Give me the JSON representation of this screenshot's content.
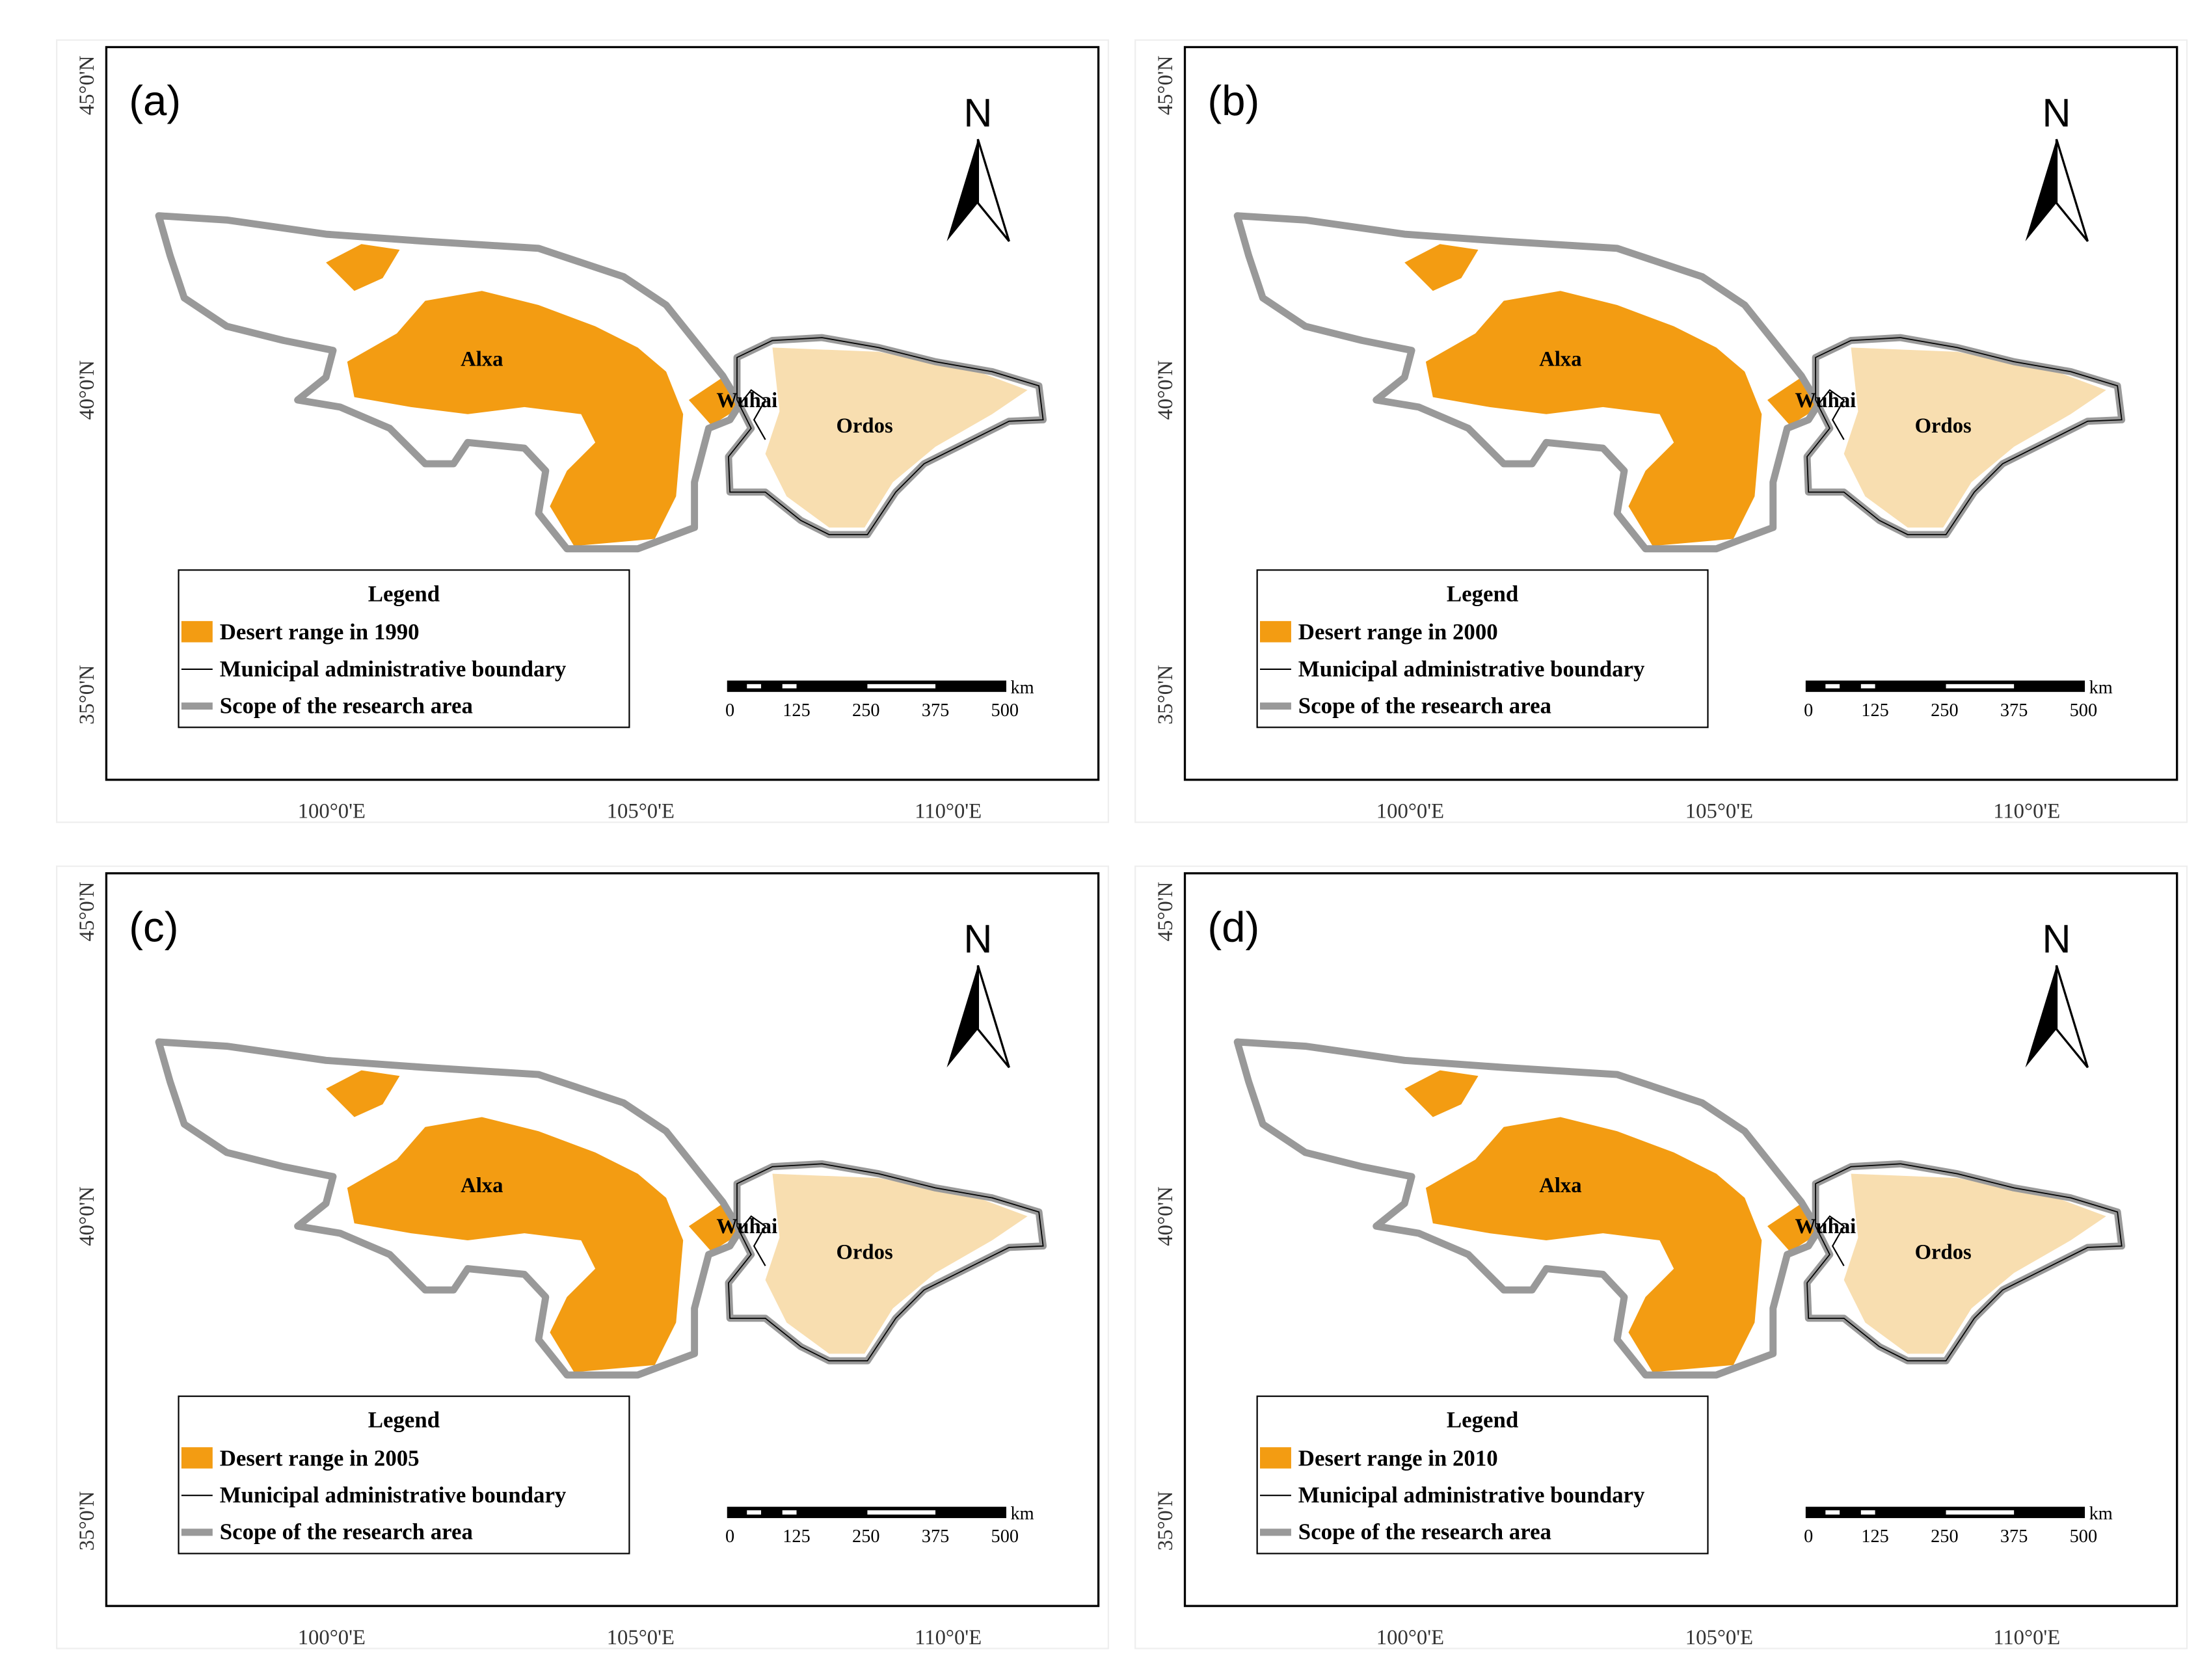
{
  "panels": [
    {
      "label": "(a)",
      "north": "N",
      "regions": [
        "Alxa",
        "Wuhai",
        "Ordos"
      ],
      "legend_title": "Legend",
      "legend_items": [
        "Desert range in 1990",
        "Municipal administrative boundary",
        "Scope of the research area"
      ],
      "scale_unit": "km",
      "scale_labels": [
        "0",
        "125",
        "250",
        "375",
        "500"
      ],
      "lat_labels": [
        "45°0'N",
        "40°0'N",
        "35°0'N"
      ],
      "lon_labels": [
        "100°0'E",
        "105°0'E",
        "110°0'E"
      ]
    },
    {
      "label": "(b)",
      "north": "N",
      "regions": [
        "Alxa",
        "Wuhai",
        "Ordos"
      ],
      "legend_title": "Legend",
      "legend_items": [
        "Desert range in 2000",
        "Municipal administrative boundary",
        "Scope of the research area"
      ],
      "scale_unit": "km",
      "scale_labels": [
        "0",
        "125",
        "250",
        "375",
        "500"
      ],
      "lat_labels": [
        "45°0'N",
        "40°0'N",
        "35°0'N"
      ],
      "lon_labels": [
        "100°0'E",
        "105°0'E",
        "110°0'E"
      ]
    },
    {
      "label": "(c)",
      "north": "N",
      "regions": [
        "Alxa",
        "Wuhai",
        "Ordos"
      ],
      "legend_title": "Legend",
      "legend_items": [
        "Desert range in 2005",
        "Municipal administrative boundary",
        "Scope of the research area"
      ],
      "scale_unit": "km",
      "scale_labels": [
        "0",
        "125",
        "250",
        "375",
        "500"
      ],
      "lat_labels": [
        "45°0'N",
        "40°0'N",
        "35°0'N"
      ],
      "lon_labels": [
        "100°0'E",
        "105°0'E",
        "110°0'E"
      ]
    },
    {
      "label": "(d)",
      "north": "N",
      "regions": [
        "Alxa",
        "Wuhai",
        "Ordos"
      ],
      "legend_title": "Legend",
      "legend_items": [
        "Desert range in 2010",
        "Municipal administrative boundary",
        "Scope of the research area"
      ],
      "scale_unit": "km",
      "scale_labels": [
        "0",
        "125",
        "250",
        "375",
        "500"
      ],
      "lat_labels": [
        "45°0'N",
        "40°0'N",
        "35°0'N"
      ],
      "lon_labels": [
        "100°0'E",
        "105°0'E",
        "110°0'E"
      ]
    }
  ]
}
